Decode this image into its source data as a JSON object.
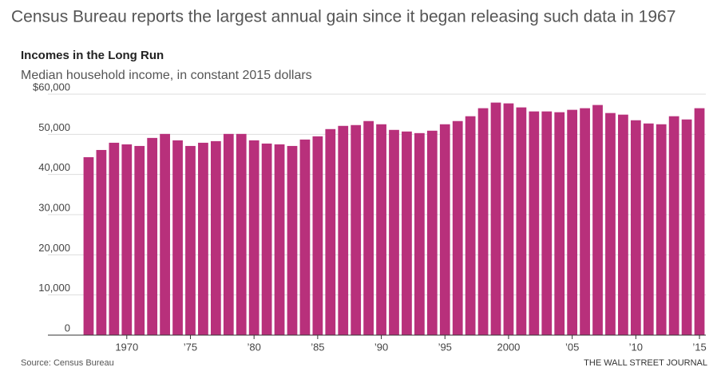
{
  "headline": "Census Bureau reports the largest annual gain since it began releasing such data in 1967",
  "chart_data": {
    "type": "bar",
    "title": "Incomes in the Long Run",
    "subtitle": "Median household income, in constant 2015 dollars",
    "x": [
      1967,
      1968,
      1969,
      1970,
      1971,
      1972,
      1973,
      1974,
      1975,
      1976,
      1977,
      1978,
      1979,
      1980,
      1981,
      1982,
      1983,
      1984,
      1985,
      1986,
      1987,
      1988,
      1989,
      1990,
      1991,
      1992,
      1993,
      1994,
      1995,
      1996,
      1997,
      1998,
      1999,
      2000,
      2001,
      2002,
      2003,
      2004,
      2005,
      2006,
      2007,
      2008,
      2009,
      2010,
      2011,
      2012,
      2013,
      2014,
      2015
    ],
    "values": [
      44300,
      46100,
      47900,
      47500,
      47100,
      49100,
      50100,
      48500,
      47100,
      47900,
      48300,
      50100,
      50100,
      48500,
      47700,
      47500,
      47100,
      48700,
      49500,
      51300,
      52100,
      52300,
      53300,
      52500,
      51100,
      50700,
      50300,
      50900,
      52500,
      53300,
      54500,
      56500,
      57900,
      57700,
      56700,
      55700,
      55700,
      55500,
      56100,
      56500,
      57300,
      55300,
      54900,
      53500,
      52700,
      52500,
      54500,
      53700,
      56500
    ],
    "color": "#b8307b",
    "xlim": [
      1966.5,
      2015.5
    ],
    "xticks": [
      {
        "value": 1970,
        "label": "1970"
      },
      {
        "value": 1975,
        "label": "’75"
      },
      {
        "value": 1980,
        "label": "’80"
      },
      {
        "value": 1985,
        "label": "’85"
      },
      {
        "value": 1990,
        "label": "’90"
      },
      {
        "value": 1995,
        "label": "’95"
      },
      {
        "value": 2000,
        "label": "2000"
      },
      {
        "value": 2005,
        "label": "’05"
      },
      {
        "value": 2010,
        "label": "’10"
      },
      {
        "value": 2015,
        "label": "’15"
      }
    ],
    "ylim": [
      0,
      60000
    ],
    "yticks": [
      0,
      {
        "value": 10000,
        "label": "10,000"
      },
      {
        "value": 20000,
        "label": "20,000"
      },
      {
        "value": 30000,
        "label": "30,000"
      },
      {
        "value": 40000,
        "label": "40,000"
      },
      {
        "value": 50000,
        "label": "50,000"
      },
      {
        "value": 60000,
        "label": "$60,000"
      }
    ],
    "grid": true,
    "source": "Source: Census Bureau",
    "credit": "THE WALL STREET JOURNAL"
  }
}
